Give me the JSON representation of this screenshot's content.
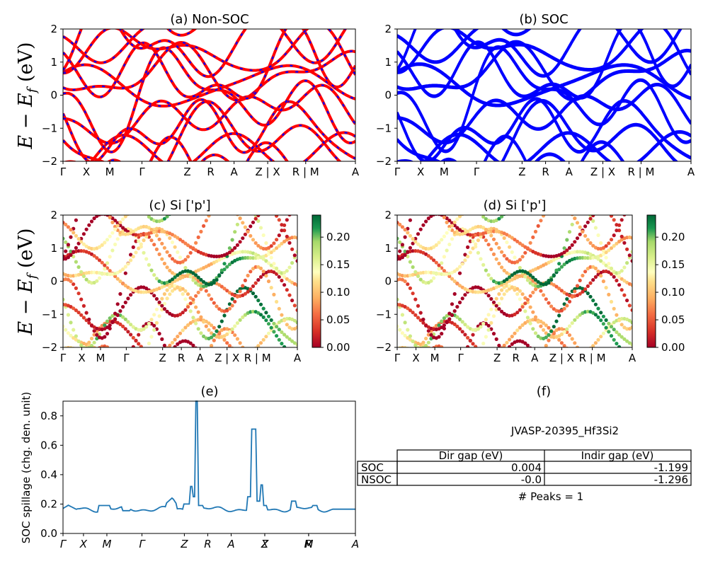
{
  "figure_id": "JVASP-20395_Hf3Si2",
  "kpath_labels": [
    "Γ",
    "X",
    "M",
    "Γ",
    "Z",
    "R",
    "A",
    "Z | X",
    "R | M",
    "A"
  ],
  "kpath_labels_e": [
    "Γ",
    "X",
    "M",
    "Γ",
    "Z",
    "R",
    "A",
    "Z",
    "X",
    "R",
    "M",
    "A"
  ],
  "ylabel_band": "E − E_f (eV)",
  "ylabel_spillage": "SOC spillage (chg. den. unit)",
  "colors": {
    "nonsoc": "#ff0000",
    "nonsoc_dash": "#0000ff",
    "soc": "#0000ff",
    "spillage": "#1f77b4"
  },
  "colorbar_ticks": [
    "0.00",
    "0.05",
    "0.10",
    "0.15",
    "0.20"
  ],
  "chart_data": [
    {
      "type": "line",
      "title": "(a) Non-SOC",
      "ylabel": "E − E_f (eV)",
      "ylim": [
        -2,
        2
      ],
      "yticks": [
        "2",
        "1",
        "0",
        "−1",
        "−2"
      ],
      "x_tick_labels": [
        "Γ",
        "X",
        "M",
        "Γ",
        "Z",
        "R",
        "A",
        "Z | X",
        "R | M",
        "A"
      ]
    },
    {
      "type": "line",
      "title": "(b) SOC",
      "ylim": [
        -2,
        2
      ],
      "yticks": [
        "2",
        "1",
        "0",
        "−1",
        "−2"
      ],
      "x_tick_labels": [
        "Γ",
        "X",
        "M",
        "Γ",
        "Z",
        "R",
        "A",
        "Z | X",
        "R | M",
        "A"
      ]
    },
    {
      "type": "scatter",
      "title": "(c)  Si ['p']",
      "ylabel": "E − E_f (eV)",
      "ylim": [
        -2,
        2
      ],
      "colorbar_range": [
        0.0,
        0.24
      ]
    },
    {
      "type": "scatter",
      "title": "(d) Si ['p']",
      "ylim": [
        -2,
        2
      ],
      "colorbar_range": [
        0.0,
        0.24
      ]
    },
    {
      "type": "line",
      "title": "(e)",
      "ylabel": "SOC spillage (chg. den. unit)",
      "ylim": [
        0.0,
        0.9
      ],
      "yticks": [
        "0.8",
        "0.6",
        "0.4",
        "0.2",
        "0.0"
      ],
      "peaks": [
        {
          "x_fraction": 0.455,
          "value": 0.9
        },
        {
          "x_fraction": 0.655,
          "value": 0.71
        }
      ],
      "baseline": 0.17
    },
    {
      "type": "table",
      "title": "(f)",
      "caption": "JVASP-20395_Hf3Si2",
      "columns": [
        "",
        "Dir gap (eV)",
        "Indir gap (eV)"
      ],
      "rows": [
        [
          "SOC",
          "0.004",
          "-1.199"
        ],
        [
          "NSOC",
          "-0.0",
          "-1.296"
        ]
      ],
      "footer": "# Peaks = 1"
    }
  ]
}
